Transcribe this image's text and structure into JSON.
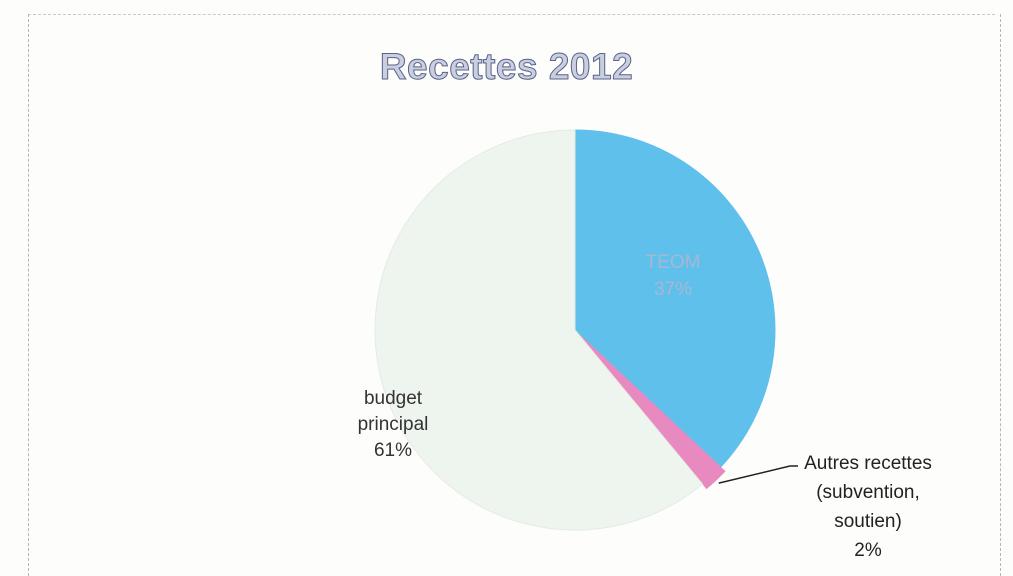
{
  "chart_data": {
    "type": "pie",
    "title": "Recettes 2012",
    "slices": [
      {
        "label": "budget principal",
        "value": 61,
        "value_label": "61%",
        "color": "#eef4ee"
      },
      {
        "label": "TEOM",
        "value": 37,
        "value_label": "37%",
        "color": "#5fc0ec"
      },
      {
        "label": "Autres recettes (subvention, soutien)",
        "value": 2,
        "value_label": "2%",
        "color": "#e88ac0"
      }
    ]
  }
}
